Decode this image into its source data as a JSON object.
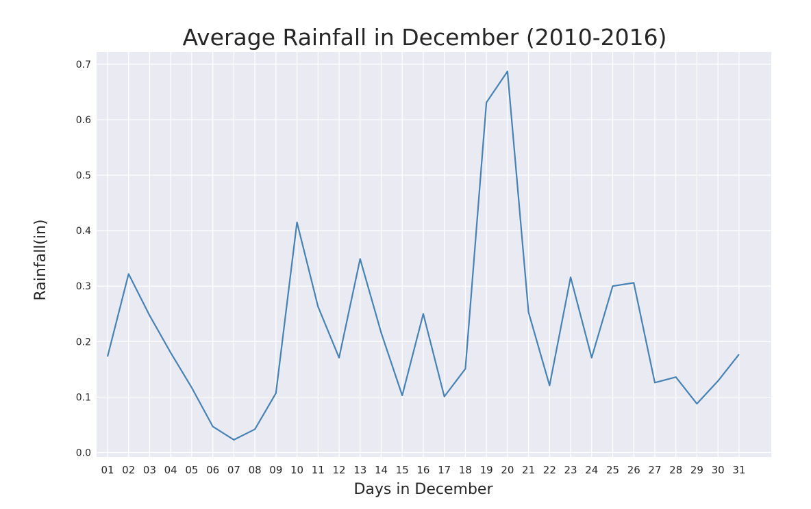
{
  "chart_data": {
    "type": "line",
    "title": "Average Rainfall in December (2010-2016)",
    "xlabel": "Days in December",
    "ylabel": "Rainfall(in)",
    "categories": [
      "01",
      "02",
      "03",
      "04",
      "05",
      "06",
      "07",
      "08",
      "09",
      "10",
      "11",
      "12",
      "13",
      "14",
      "15",
      "16",
      "17",
      "18",
      "19",
      "20",
      "21",
      "22",
      "23",
      "24",
      "25",
      "26",
      "27",
      "28",
      "29",
      "30",
      "31"
    ],
    "series": [
      {
        "values": [
          0.173,
          0.322,
          0.247,
          0.18,
          0.117,
          0.047,
          0.023,
          0.042,
          0.107,
          0.415,
          0.263,
          0.171,
          0.349,
          0.216,
          0.103,
          0.25,
          0.101,
          0.151,
          0.631,
          0.687,
          0.253,
          0.121,
          0.316,
          0.171,
          0.3,
          0.306,
          0.126,
          0.136,
          0.088,
          0.129,
          0.177
        ]
      }
    ],
    "ylim": [
      -0.008,
      0.722
    ],
    "yticks": [
      "0.0",
      "0.1",
      "0.2",
      "0.3",
      "0.4",
      "0.5",
      "0.6",
      "0.7"
    ],
    "grid": true,
    "colors": {
      "line": "#4682b4",
      "plot_background": "#eaeaf2",
      "grid": "#ffffff"
    }
  }
}
